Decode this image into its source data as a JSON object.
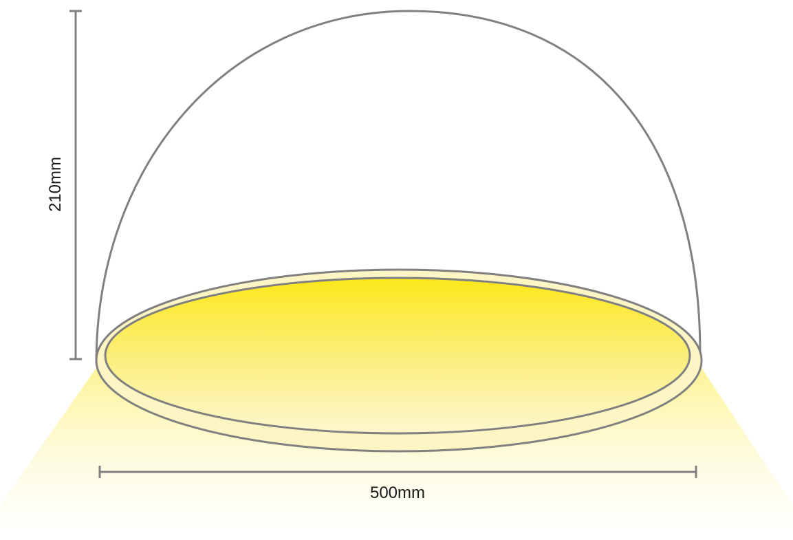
{
  "diagram": {
    "height_label": "210mm",
    "width_label": "500mm"
  },
  "colors": {
    "outline": "#808080",
    "light_top": "#fce91c",
    "light_fade": "#ffffff"
  }
}
